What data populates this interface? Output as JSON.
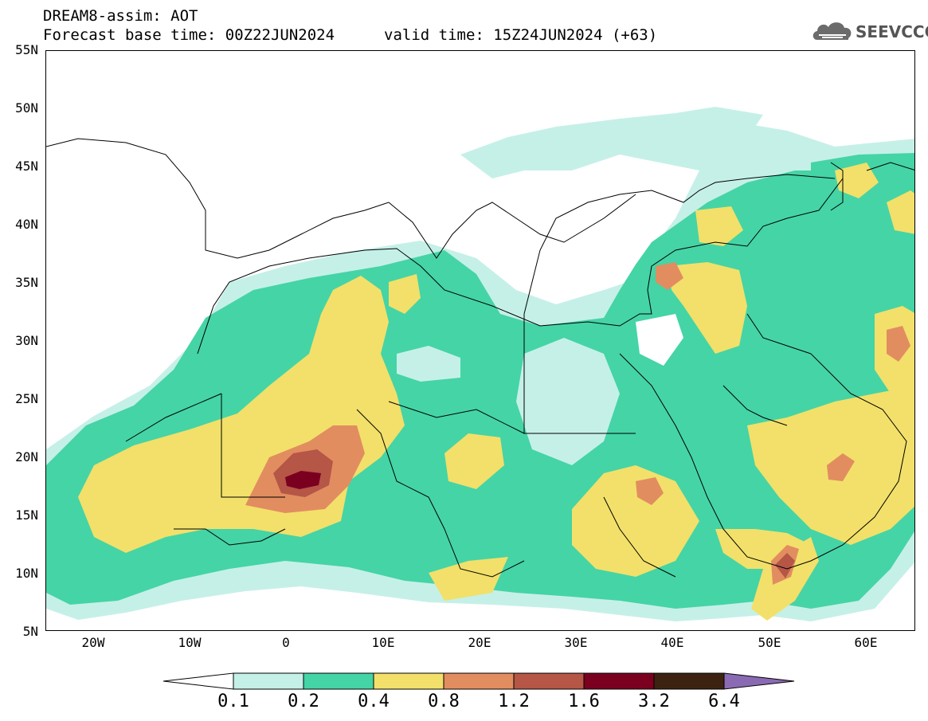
{
  "header": {
    "title": "DREAM8-assim: AOT",
    "base_time": "Forecast base time: 00Z22JUN2024",
    "valid_time": "valid time: 15Z24JUN2024 (+63)",
    "logo_text": "SEEVCCC"
  },
  "map": {
    "lon_range": [
      -25,
      65
    ],
    "lat_range": [
      5,
      55
    ],
    "lat_ticks": [
      "55N",
      "50N",
      "45N",
      "40N",
      "35N",
      "30N",
      "25N",
      "20N",
      "15N",
      "10N",
      "5N"
    ],
    "lon_ticks": [
      "20W",
      "10W",
      "0",
      "10E",
      "20E",
      "30E",
      "40E",
      "50E",
      "60E"
    ]
  },
  "legend": {
    "labels": [
      "0.1",
      "0.2",
      "0.4",
      "0.8",
      "1.2",
      "1.6",
      "3.2",
      "6.4"
    ],
    "colors": {
      "under": "#ffffff",
      "0.1-0.2": "#c5f0e8",
      "0.2-0.4": "#45d4a5",
      "0.4-0.8": "#f2e06a",
      "0.8-1.2": "#e28d60",
      "1.2-1.6": "#b55646",
      "1.6-3.2": "#7b0020",
      "3.2-6.4": "#3c2311",
      "over": "#8b6ab4"
    }
  }
}
